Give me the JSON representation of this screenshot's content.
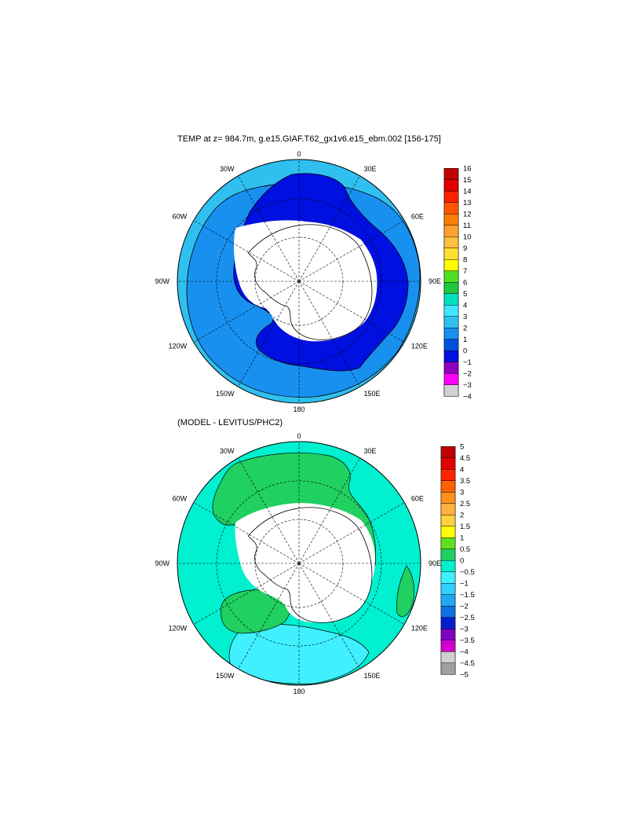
{
  "panels": [
    {
      "title": "TEMP at z= 984.7m, g.e15.GIAF.T62_gx1v6.e15_ebm.002 [156-175]",
      "colorbar": {
        "labels": [
          "16",
          "15",
          "14",
          "13",
          "12",
          "11",
          "10",
          "9",
          "8",
          "7",
          "6",
          "5",
          "4",
          "3",
          "2",
          "1",
          "0",
          "−1",
          "−2",
          "−3",
          "−4"
        ],
        "colors": [
          "#c00000",
          "#e00000",
          "#ff2200",
          "#ff5500",
          "#ff8000",
          "#ffa030",
          "#ffc040",
          "#ffe030",
          "#ffff00",
          "#50e020",
          "#20c840",
          "#00e0c0",
          "#40e8ff",
          "#30c0f0",
          "#1890f0",
          "#0050e0",
          "#0010e0",
          "#9000c0",
          "#ff00ff",
          "#d0d0d0",
          "#707070"
        ]
      },
      "meridian_labels": [
        "0",
        "30E",
        "60E",
        "90E",
        "120E",
        "150E",
        "180",
        "150W",
        "120W",
        "90W",
        "60W",
        "30W"
      ]
    },
    {
      "title": "(MODEL - LEVITUS/PHC2)",
      "colorbar": {
        "labels": [
          "5",
          "4.5",
          "4",
          "3.5",
          "3",
          "2.5",
          "2",
          "1.5",
          "1",
          "0.5",
          "0",
          "−0.5",
          "−1",
          "−1.5",
          "−2",
          "−2.5",
          "−3",
          "−3.5",
          "−4",
          "−4.5",
          "−5"
        ],
        "colors": [
          "#c00000",
          "#e00000",
          "#ff2200",
          "#ff6000",
          "#ff9020",
          "#ffb040",
          "#ffd040",
          "#ffff00",
          "#60e020",
          "#20d060",
          "#00f0d0",
          "#40f0ff",
          "#30d0ff",
          "#20a8f0",
          "#1070e0",
          "#0020d0",
          "#8000c0",
          "#d000d0",
          "#d0d0d0",
          "#a0a0a0",
          "#707070"
        ]
      },
      "meridian_labels": [
        "0",
        "30E",
        "60E",
        "90E",
        "120E",
        "150E",
        "180",
        "150W",
        "120W",
        "90W",
        "60W",
        "30W"
      ]
    }
  ]
}
